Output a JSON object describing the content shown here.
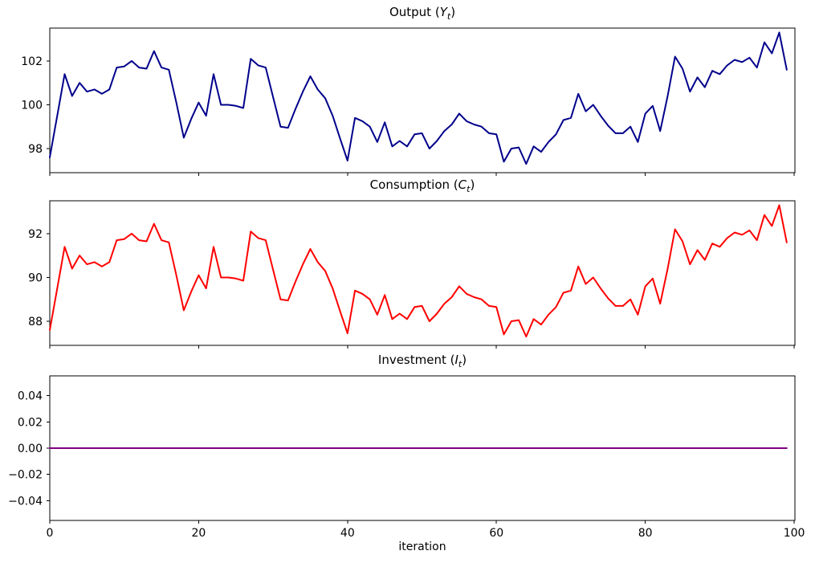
{
  "figure": {
    "background": "#ffffff",
    "frame_color": "#000000"
  },
  "chart_data": [
    {
      "type": "line",
      "title_prefix": "Output (",
      "title_var": "Y",
      "title_sub": "t",
      "title_suffix": ")",
      "color": "#00008b",
      "xlim": [
        0,
        100.1
      ],
      "ylim": [
        96.9,
        103.5
      ],
      "yticks": [
        {
          "v": 98,
          "label": "98"
        },
        {
          "v": 100,
          "label": "100"
        },
        {
          "v": 102,
          "label": "102"
        }
      ],
      "xticks": [
        0,
        20,
        40,
        60,
        80,
        100
      ],
      "x_is_index": true,
      "values": [
        97.6,
        99.5,
        101.4,
        100.4,
        101.0,
        100.6,
        100.7,
        100.5,
        100.7,
        101.7,
        101.75,
        102.0,
        101.7,
        101.65,
        102.45,
        101.7,
        101.6,
        100.1,
        98.5,
        99.35,
        100.1,
        99.5,
        101.4,
        100.0,
        100.0,
        99.95,
        99.85,
        102.1,
        101.8,
        101.7,
        100.35,
        99.0,
        98.95,
        99.8,
        100.6,
        101.3,
        100.7,
        100.3,
        99.5,
        98.45,
        97.45,
        99.4,
        99.25,
        99.0,
        98.3,
        99.2,
        98.1,
        98.35,
        98.1,
        98.65,
        98.7,
        98.0,
        98.35,
        98.8,
        99.1,
        99.6,
        99.25,
        99.1,
        99.0,
        98.7,
        98.65,
        97.4,
        98.0,
        98.05,
        97.3,
        98.1,
        97.85,
        98.3,
        98.65,
        99.3,
        99.4,
        100.5,
        99.7,
        100.0,
        99.5,
        99.05,
        98.7,
        98.7,
        99.0,
        98.3,
        99.6,
        99.95,
        98.8,
        100.4,
        102.2,
        101.65,
        100.6,
        101.25,
        100.8,
        101.55,
        101.4,
        101.8,
        102.05,
        101.95,
        102.15,
        101.7,
        102.85,
        102.35,
        103.3,
        101.6
      ]
    },
    {
      "type": "line",
      "title_prefix": "Consumption (",
      "title_var": "C",
      "title_sub": "t",
      "title_suffix": ")",
      "color": "#ff0000",
      "xlim": [
        0,
        100.1
      ],
      "ylim": [
        86.9,
        93.5
      ],
      "yticks": [
        {
          "v": 88,
          "label": "88"
        },
        {
          "v": 90,
          "label": "90"
        },
        {
          "v": 92,
          "label": "92"
        }
      ],
      "xticks": [
        0,
        20,
        40,
        60,
        80,
        100
      ],
      "x_is_index": true,
      "values": [
        87.6,
        89.5,
        91.4,
        90.4,
        91.0,
        90.6,
        90.7,
        90.5,
        90.7,
        91.7,
        91.75,
        92.0,
        91.7,
        91.65,
        92.45,
        91.7,
        91.6,
        90.1,
        88.5,
        89.35,
        90.1,
        89.5,
        91.4,
        90.0,
        90.0,
        89.95,
        89.85,
        92.1,
        91.8,
        91.7,
        90.35,
        89.0,
        88.95,
        89.8,
        90.6,
        91.3,
        90.7,
        90.3,
        89.5,
        88.45,
        87.45,
        89.4,
        89.25,
        89.0,
        88.3,
        89.2,
        88.1,
        88.35,
        88.1,
        88.65,
        88.7,
        88.0,
        88.35,
        88.8,
        89.1,
        89.6,
        89.25,
        89.1,
        89.0,
        88.7,
        88.65,
        87.4,
        88.0,
        88.05,
        87.3,
        88.1,
        87.85,
        88.3,
        88.65,
        89.3,
        89.4,
        90.5,
        89.7,
        90.0,
        89.5,
        89.05,
        88.7,
        88.7,
        89.0,
        88.3,
        89.6,
        89.95,
        88.8,
        90.4,
        92.2,
        91.65,
        90.6,
        91.25,
        90.8,
        91.55,
        91.4,
        91.8,
        92.05,
        91.95,
        92.15,
        91.7,
        92.85,
        92.35,
        93.3,
        91.6
      ]
    },
    {
      "type": "line",
      "title_prefix": "Investment (",
      "title_var": "I",
      "title_sub": "t",
      "title_suffix": ")",
      "color": "#800080",
      "xlim": [
        0,
        100.1
      ],
      "ylim": [
        -0.055,
        0.055
      ],
      "yticks": [
        {
          "v": -0.04,
          "label": "−0.04"
        },
        {
          "v": -0.02,
          "label": "−0.02"
        },
        {
          "v": 0.0,
          "label": "0.00"
        },
        {
          "v": 0.02,
          "label": "0.02"
        },
        {
          "v": 0.04,
          "label": "0.04"
        }
      ],
      "xticks": [
        0,
        20,
        40,
        60,
        80,
        100
      ],
      "xticklabels": [
        "0",
        "20",
        "40",
        "60",
        "80",
        "100"
      ],
      "xlabel": "iteration",
      "x_is_index": true,
      "values_constant": {
        "value": 0.0,
        "n": 100
      }
    }
  ]
}
